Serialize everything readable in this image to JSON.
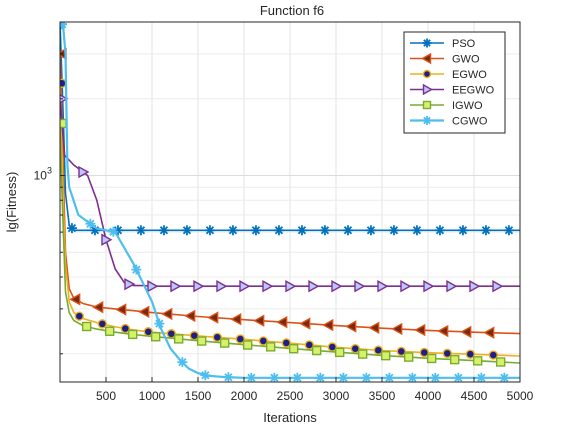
{
  "chart_data": {
    "type": "line",
    "title": "Function f6",
    "xlabel": "Iterations",
    "ylabel": "lg(Fitness)",
    "y_scale": "log",
    "xlim": [
      0,
      5000
    ],
    "ylim": [
      155,
      4000
    ],
    "grid": true,
    "legend_position": "top-right",
    "x_ticks": [
      500,
      1000,
      1500,
      2000,
      2500,
      3000,
      3500,
      4000,
      4500,
      5000
    ],
    "y_tick_label": {
      "base": "10",
      "exp": "3",
      "value": 1000
    },
    "series": [
      {
        "name": "PSO",
        "color": "#0072bd",
        "marker": "star",
        "points": [
          [
            0,
            4000
          ],
          [
            20,
            2500
          ],
          [
            40,
            1500
          ],
          [
            60,
            850
          ],
          [
            100,
            640
          ],
          [
            150,
            610
          ],
          [
            300,
            610
          ],
          [
            5000,
            610
          ]
        ]
      },
      {
        "name": "GWO",
        "color": "#d95319",
        "marker": "triangle-left",
        "points": [
          [
            0,
            3000
          ],
          [
            20,
            1800
          ],
          [
            40,
            900
          ],
          [
            60,
            500
          ],
          [
            100,
            360
          ],
          [
            150,
            330
          ],
          [
            250,
            315
          ],
          [
            400,
            305
          ],
          [
            600,
            300
          ],
          [
            800,
            295
          ],
          [
            1000,
            290
          ],
          [
            1500,
            280
          ],
          [
            2000,
            272
          ],
          [
            2500,
            265
          ],
          [
            3000,
            258
          ],
          [
            3500,
            252
          ],
          [
            4000,
            247
          ],
          [
            4500,
            243
          ],
          [
            5000,
            240
          ]
        ]
      },
      {
        "name": "EGWO",
        "color": "#edb120",
        "marker": "circle",
        "points": [
          [
            0,
            2300
          ],
          [
            20,
            1300
          ],
          [
            40,
            700
          ],
          [
            60,
            450
          ],
          [
            100,
            320
          ],
          [
            150,
            290
          ],
          [
            250,
            275
          ],
          [
            400,
            265
          ],
          [
            600,
            255
          ],
          [
            800,
            248
          ],
          [
            1000,
            243
          ],
          [
            1500,
            235
          ],
          [
            2000,
            228
          ],
          [
            2500,
            220
          ],
          [
            3000,
            212
          ],
          [
            3500,
            206
          ],
          [
            4000,
            202
          ],
          [
            4500,
            199
          ],
          [
            5000,
            196
          ]
        ]
      },
      {
        "name": "EEGWO",
        "color": "#7e2f8e",
        "marker": "triangle-right",
        "points": [
          [
            0,
            2000
          ],
          [
            50,
            1200
          ],
          [
            150,
            1100
          ],
          [
            300,
            1000
          ],
          [
            400,
            800
          ],
          [
            500,
            560
          ],
          [
            600,
            430
          ],
          [
            700,
            380
          ],
          [
            800,
            370
          ],
          [
            900,
            370
          ],
          [
            1000,
            368
          ],
          [
            2000,
            368
          ],
          [
            3000,
            368
          ],
          [
            4000,
            368
          ],
          [
            5000,
            368
          ]
        ]
      },
      {
        "name": "IGWO",
        "color": "#77ac30",
        "marker": "square",
        "points": [
          [
            0,
            1600
          ],
          [
            20,
            900
          ],
          [
            40,
            550
          ],
          [
            60,
            350
          ],
          [
            100,
            290
          ],
          [
            150,
            270
          ],
          [
            250,
            258
          ],
          [
            400,
            250
          ],
          [
            600,
            243
          ],
          [
            800,
            238
          ],
          [
            1000,
            234
          ],
          [
            1500,
            225
          ],
          [
            2000,
            217
          ],
          [
            2500,
            210
          ],
          [
            3000,
            203
          ],
          [
            3500,
            197
          ],
          [
            4000,
            192
          ],
          [
            4500,
            188
          ],
          [
            5000,
            184
          ]
        ]
      },
      {
        "name": "CGWO",
        "color": "#4dbeee",
        "marker": "star",
        "points": [
          [
            0,
            4000
          ],
          [
            30,
            4000
          ],
          [
            60,
            3000
          ],
          [
            80,
            1100
          ],
          [
            100,
            900
          ],
          [
            200,
            700
          ],
          [
            400,
            620
          ],
          [
            600,
            600
          ],
          [
            700,
            520
          ],
          [
            800,
            450
          ],
          [
            900,
            380
          ],
          [
            1000,
            320
          ],
          [
            1100,
            250
          ],
          [
            1200,
            210
          ],
          [
            1300,
            190
          ],
          [
            1400,
            175
          ],
          [
            1500,
            168
          ],
          [
            1600,
            164
          ],
          [
            1800,
            162
          ],
          [
            2000,
            161
          ],
          [
            3000,
            161
          ],
          [
            4000,
            161
          ],
          [
            5000,
            161
          ]
        ]
      }
    ]
  }
}
